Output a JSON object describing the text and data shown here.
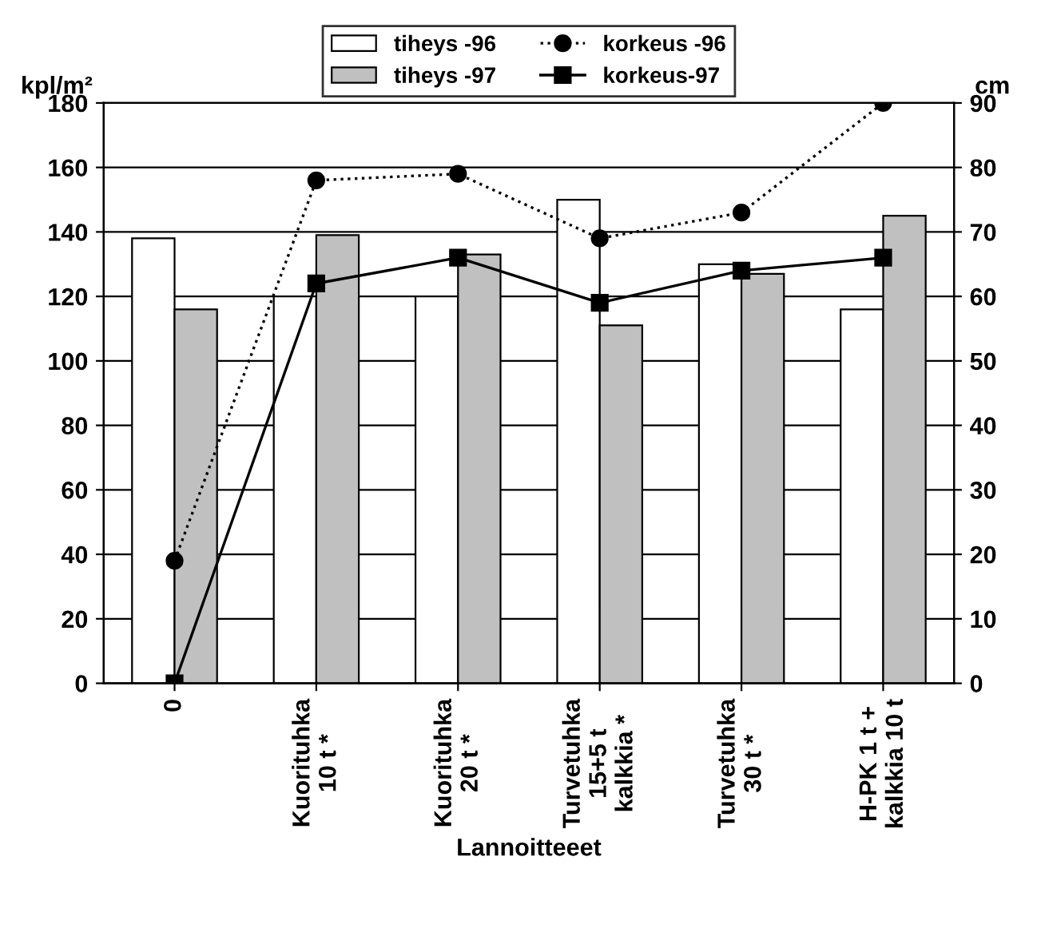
{
  "chart_data": {
    "type": "bar",
    "xlabel": "Lannoitteeet",
    "ylabel": "kpl/m²",
    "y2label": "cm",
    "categories": [
      "0",
      "Kuorituhka\n10 t *",
      "Kuorituhka\n20 t *",
      "Turvetuhka\n15+5 t\nkalkkia *",
      "Turvetuhka\n30 t *",
      "H-PK 1 t +\nkalkkia 10 t"
    ],
    "series": [
      {
        "name": "tiheys -96",
        "color": "#ffffff",
        "values": [
          138,
          120,
          120,
          150,
          130,
          116
        ]
      },
      {
        "name": "tiheys -97",
        "color": "#c0c0c0",
        "values": [
          116,
          139,
          133,
          111,
          127,
          145
        ]
      },
      {
        "name": "korkeus -96",
        "type": "line",
        "axis": "y2",
        "color": "#000000",
        "marker": "circle",
        "line_style": "dotted",
        "values": [
          19,
          78,
          79,
          69,
          73,
          90
        ]
      },
      {
        "name": "korkeus-97",
        "type": "line",
        "axis": "y2",
        "color": "#000000",
        "marker": "square",
        "line_style": "solid",
        "values": [
          0,
          62,
          66,
          59,
          64,
          66
        ]
      }
    ],
    "ylim": [
      0,
      180
    ],
    "yticks": [
      0,
      20,
      40,
      60,
      80,
      100,
      120,
      140,
      160,
      180
    ],
    "y2lim": [
      0,
      90
    ],
    "y2ticks": [
      0,
      10,
      20,
      30,
      40,
      50,
      60,
      70,
      80,
      90
    ],
    "grid": "y",
    "legend": "top"
  }
}
